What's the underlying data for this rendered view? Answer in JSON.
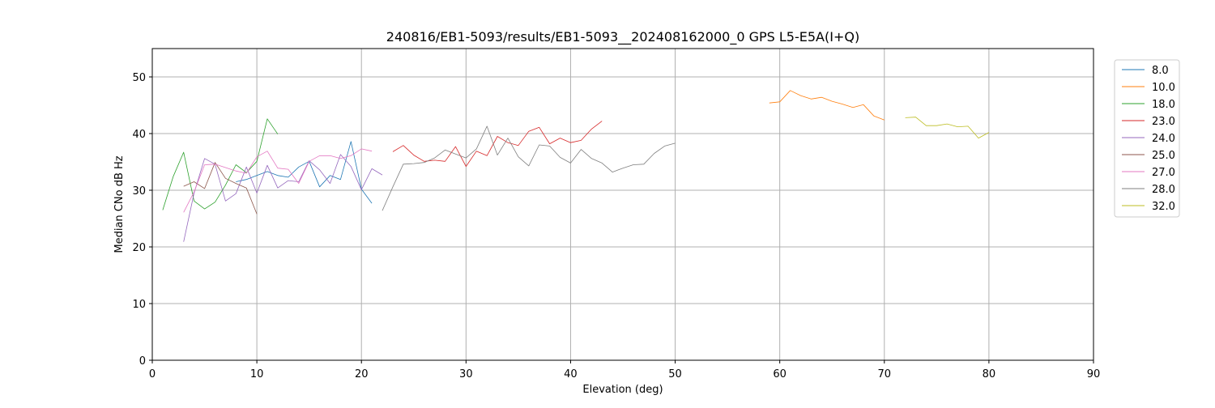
{
  "chart_data": {
    "type": "line",
    "title": "240816/EB1-5093/results/EB1-5093__202408162000_0 GPS L5-E5A(I+Q)",
    "xlabel": "Elevation (deg)",
    "ylabel": "Median CNo dB Hz",
    "xlim": [
      0,
      90
    ],
    "ylim": [
      0,
      55
    ],
    "xticks": [
      0,
      10,
      20,
      30,
      40,
      50,
      60,
      70,
      80,
      90
    ],
    "yticks": [
      0,
      10,
      20,
      30,
      40,
      50
    ],
    "grid": true,
    "legend_position": "right",
    "series": [
      {
        "name": "8.0",
        "color": "#1f77b4",
        "x": [
          8,
          9,
          10,
          11,
          12,
          13,
          14,
          15,
          16,
          17,
          18,
          19,
          20,
          21
        ],
        "y": [
          31.5,
          31.9,
          32.6,
          33.3,
          32.6,
          32.3,
          34.1,
          35.1,
          30.6,
          32.6,
          31.9,
          38.6,
          30.2,
          27.7
        ]
      },
      {
        "name": "10.0",
        "color": "#ff7f0e",
        "x": [
          59,
          60,
          61,
          62,
          63,
          64,
          65,
          66,
          67,
          68,
          69,
          70
        ],
        "y": [
          45.4,
          45.6,
          47.6,
          46.7,
          46.1,
          46.4,
          45.7,
          45.2,
          44.6,
          45.1,
          43.1,
          42.4
        ]
      },
      {
        "name": "18.0",
        "color": "#2ca02c",
        "x": [
          1,
          2,
          3,
          4,
          5,
          6,
          7,
          8,
          9,
          10,
          11,
          12
        ],
        "y": [
          26.5,
          32.4,
          36.7,
          28.1,
          26.7,
          27.9,
          30.9,
          34.5,
          33.1,
          35.1,
          42.6,
          39.9
        ]
      },
      {
        "name": "23.0",
        "color": "#d62728",
        "x": [
          23,
          24,
          25,
          26,
          27,
          28,
          29,
          30,
          31,
          32,
          33,
          34,
          35,
          36,
          37,
          38,
          39,
          40,
          41,
          42,
          43
        ],
        "y": [
          36.8,
          37.9,
          36.2,
          35.1,
          35.3,
          35.1,
          37.7,
          34.2,
          36.9,
          36.1,
          39.5,
          38.4,
          37.9,
          40.4,
          41.1,
          38.2,
          39.2,
          38.4,
          38.8,
          40.8,
          42.2
        ]
      },
      {
        "name": "24.0",
        "color": "#9467bd",
        "x": [
          3,
          4,
          5,
          6,
          7,
          8,
          9,
          10,
          11,
          12,
          13,
          14,
          15,
          16,
          17,
          18,
          19,
          20,
          21,
          22
        ],
        "y": [
          20.9,
          29.5,
          35.6,
          34.6,
          28.1,
          29.4,
          34.1,
          29.5,
          34.4,
          30.4,
          31.7,
          31.5,
          35.2,
          33.6,
          31.2,
          36.3,
          34.2,
          30.1,
          33.8,
          32.7
        ]
      },
      {
        "name": "25.0",
        "color": "#8c564b",
        "x": [
          3,
          4,
          5,
          6,
          7,
          8,
          9,
          10
        ],
        "y": [
          30.7,
          31.5,
          30.3,
          34.9,
          32.1,
          31.2,
          30.4,
          25.8
        ]
      },
      {
        "name": "27.0",
        "color": "#e377c2",
        "x": [
          3,
          4,
          5,
          6,
          7,
          8,
          9,
          10,
          11,
          12,
          13,
          14,
          15,
          16,
          17,
          18,
          19,
          20,
          21
        ],
        "y": [
          26.1,
          29.7,
          34.5,
          34.6,
          34.0,
          33.4,
          33.0,
          35.9,
          36.9,
          33.9,
          33.7,
          31.2,
          35.1,
          36.1,
          36.1,
          35.6,
          36.1,
          37.3,
          36.9
        ]
      },
      {
        "name": "28.0",
        "color": "#7f7f7f",
        "x": [
          22,
          23,
          24,
          25,
          26,
          27,
          28,
          29,
          30,
          31,
          32,
          33,
          34,
          35,
          36,
          37,
          38,
          39,
          40,
          41,
          42,
          43,
          44,
          45,
          46,
          47,
          48,
          49,
          50
        ],
        "y": [
          26.4,
          30.6,
          34.6,
          34.7,
          34.9,
          35.7,
          37.1,
          36.4,
          35.7,
          37.3,
          41.3,
          36.2,
          39.2,
          35.9,
          34.3,
          38.0,
          37.8,
          35.8,
          34.8,
          37.2,
          35.6,
          34.8,
          33.2,
          33.9,
          34.5,
          34.6,
          36.5,
          37.8,
          38.3
        ]
      },
      {
        "name": "32.0",
        "color": "#bcbd22",
        "x": [
          72,
          73,
          74,
          75,
          76,
          77,
          78,
          79,
          80
        ],
        "y": [
          42.8,
          42.9,
          41.4,
          41.4,
          41.7,
          41.2,
          41.3,
          39.2,
          40.2
        ]
      }
    ]
  }
}
